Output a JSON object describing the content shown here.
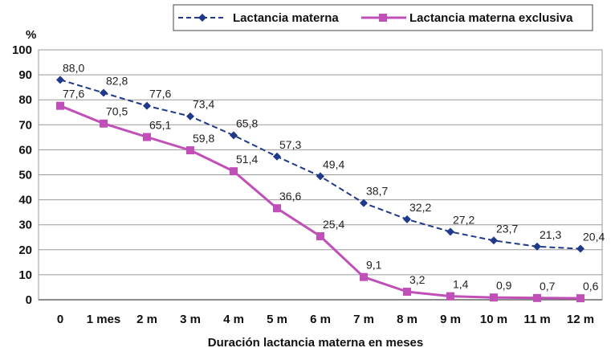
{
  "chart_data": {
    "type": "line",
    "title": "",
    "xlabel": "Duración lactancia materna en meses",
    "ylabel": "%",
    "ylim": [
      0,
      100
    ],
    "yticks": [
      "0",
      "10",
      "20",
      "30",
      "40",
      "50",
      "60",
      "70",
      "80",
      "90",
      "100"
    ],
    "categories": [
      "0",
      "1 mes",
      "2 m",
      "3 m",
      "4 m",
      "5 m",
      "6 m",
      "7 m",
      "8 m",
      "9 m",
      "10 m",
      "11 m",
      "12 m"
    ],
    "grid": "horizontal",
    "legend_position": "top",
    "series": [
      {
        "name": "Lactancia materna",
        "color": "#1f3a8a",
        "line_style": "dashed",
        "marker": "diamond",
        "values": [
          88.0,
          82.8,
          77.6,
          73.4,
          65.8,
          57.3,
          49.4,
          38.7,
          32.2,
          27.2,
          23.7,
          21.3,
          20.4
        ],
        "labels": [
          "88,0",
          "82,8",
          "77,6",
          "73,4",
          "65,8",
          "57,3",
          "49,4",
          "38,7",
          "32,2",
          "27,2",
          "23,7",
          "21,3",
          "20,4"
        ]
      },
      {
        "name": "Lactancia materna exclusiva",
        "color": "#c04fb8",
        "line_style": "solid",
        "marker": "square",
        "values": [
          77.6,
          70.5,
          65.1,
          59.8,
          51.4,
          36.6,
          25.4,
          9.1,
          3.2,
          1.4,
          0.9,
          0.7,
          0.6
        ],
        "labels": [
          "77,6",
          "70,5",
          "65,1",
          "59,8",
          "51,4",
          "36,6",
          "25,4",
          "9,1",
          "3,2",
          "1,4",
          "0,9",
          "0,7",
          "0,6"
        ]
      }
    ]
  }
}
